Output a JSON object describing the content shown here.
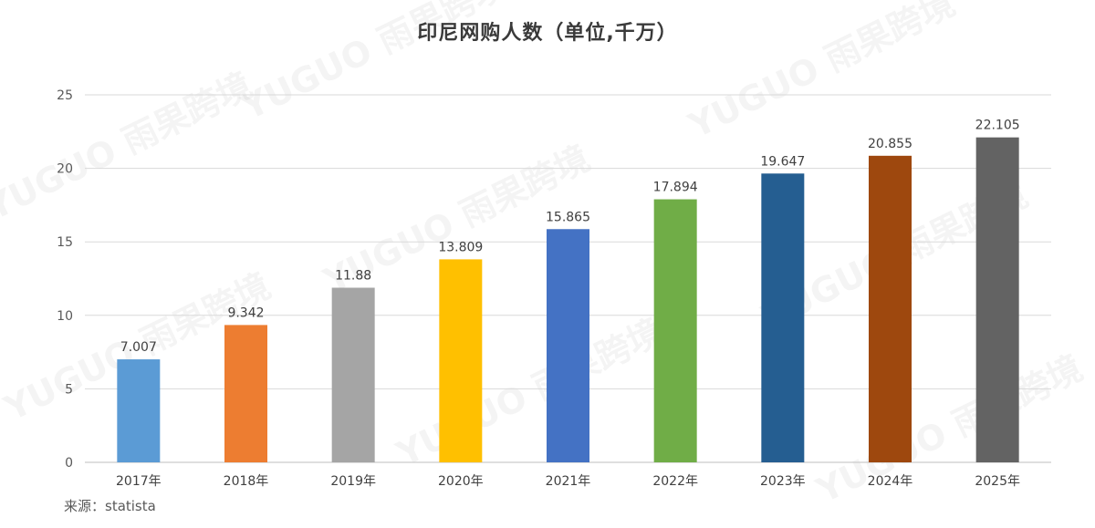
{
  "watermark": {
    "text": "YUGUO 雨果跨境"
  },
  "source_text": "来源：statista",
  "chart_data": {
    "type": "bar",
    "title": "印尼网购人数（单位,千万）",
    "xlabel": "",
    "ylabel": "",
    "categories": [
      "2017年",
      "2018年",
      "2019年",
      "2020年",
      "2021年",
      "2022年",
      "2023年",
      "2024年",
      "2025年"
    ],
    "values": [
      7.007,
      9.342,
      11.88,
      13.809,
      15.865,
      17.894,
      19.647,
      20.855,
      22.105
    ],
    "value_labels": [
      "7.007",
      "9.342",
      "11.88",
      "13.809",
      "15.865",
      "17.894",
      "19.647",
      "20.855",
      "22.105"
    ],
    "colors": [
      "#5B9BD5",
      "#ED7D31",
      "#A5A5A5",
      "#FFC000",
      "#4472C4",
      "#70AD47",
      "#255E91",
      "#9E480E",
      "#636363"
    ],
    "ylim": [
      0,
      25
    ],
    "yticks": [
      "0",
      "5",
      "10",
      "15",
      "20",
      "25"
    ],
    "grid": true,
    "legend": "none"
  }
}
